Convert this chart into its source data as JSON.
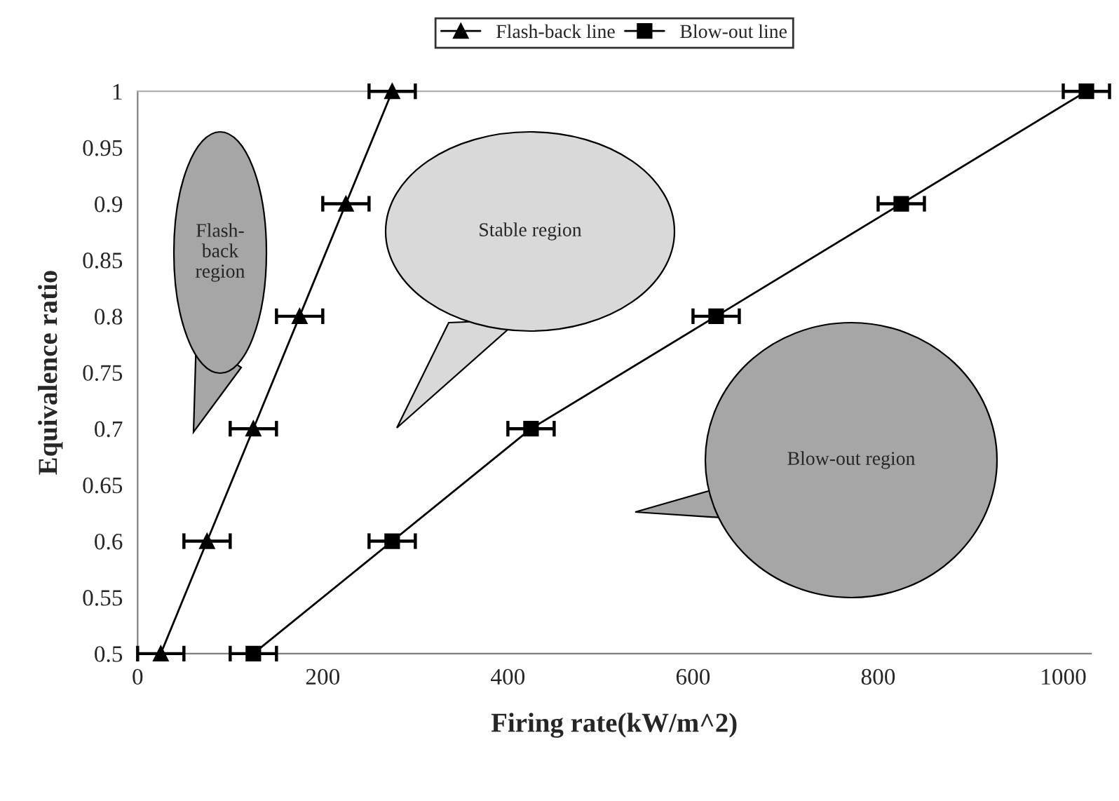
{
  "chart_data": {
    "type": "line",
    "xlabel": "Firing rate(kW/m^2)",
    "ylabel": "Equivalence ratio",
    "xlim": [
      0,
      1030
    ],
    "xticks": [
      0,
      200,
      400,
      600,
      800,
      1000
    ],
    "ylim": [
      0.5,
      1
    ],
    "yticks": [
      0.5,
      0.55,
      0.6,
      0.65,
      0.7,
      0.75,
      0.8,
      0.85,
      0.9,
      0.95,
      1
    ],
    "grid": false,
    "legend": "top",
    "line_style": "solid",
    "series": [
      {
        "name": "Flash-back line",
        "color": "#000000",
        "marker": "triangle",
        "x": [
          25,
          75,
          125,
          175,
          225,
          275
        ],
        "values": [
          0.5,
          0.6,
          0.7,
          0.8,
          0.9,
          1
        ],
        "xerrors": [
          25,
          25,
          25,
          25,
          25,
          25
        ]
      },
      {
        "name": "Blow-out line",
        "color": "#000000",
        "marker": "square",
        "x": [
          125,
          275,
          425,
          625,
          825,
          1025
        ],
        "values": [
          0.5,
          0.6,
          0.7,
          0.8,
          0.9,
          1
        ],
        "xerrors": [
          25,
          25,
          25,
          25,
          25,
          25
        ]
      }
    ],
    "annotations": [
      "Flash-\nback\nregion",
      "Stable region",
      "Blow-out region"
    ]
  }
}
